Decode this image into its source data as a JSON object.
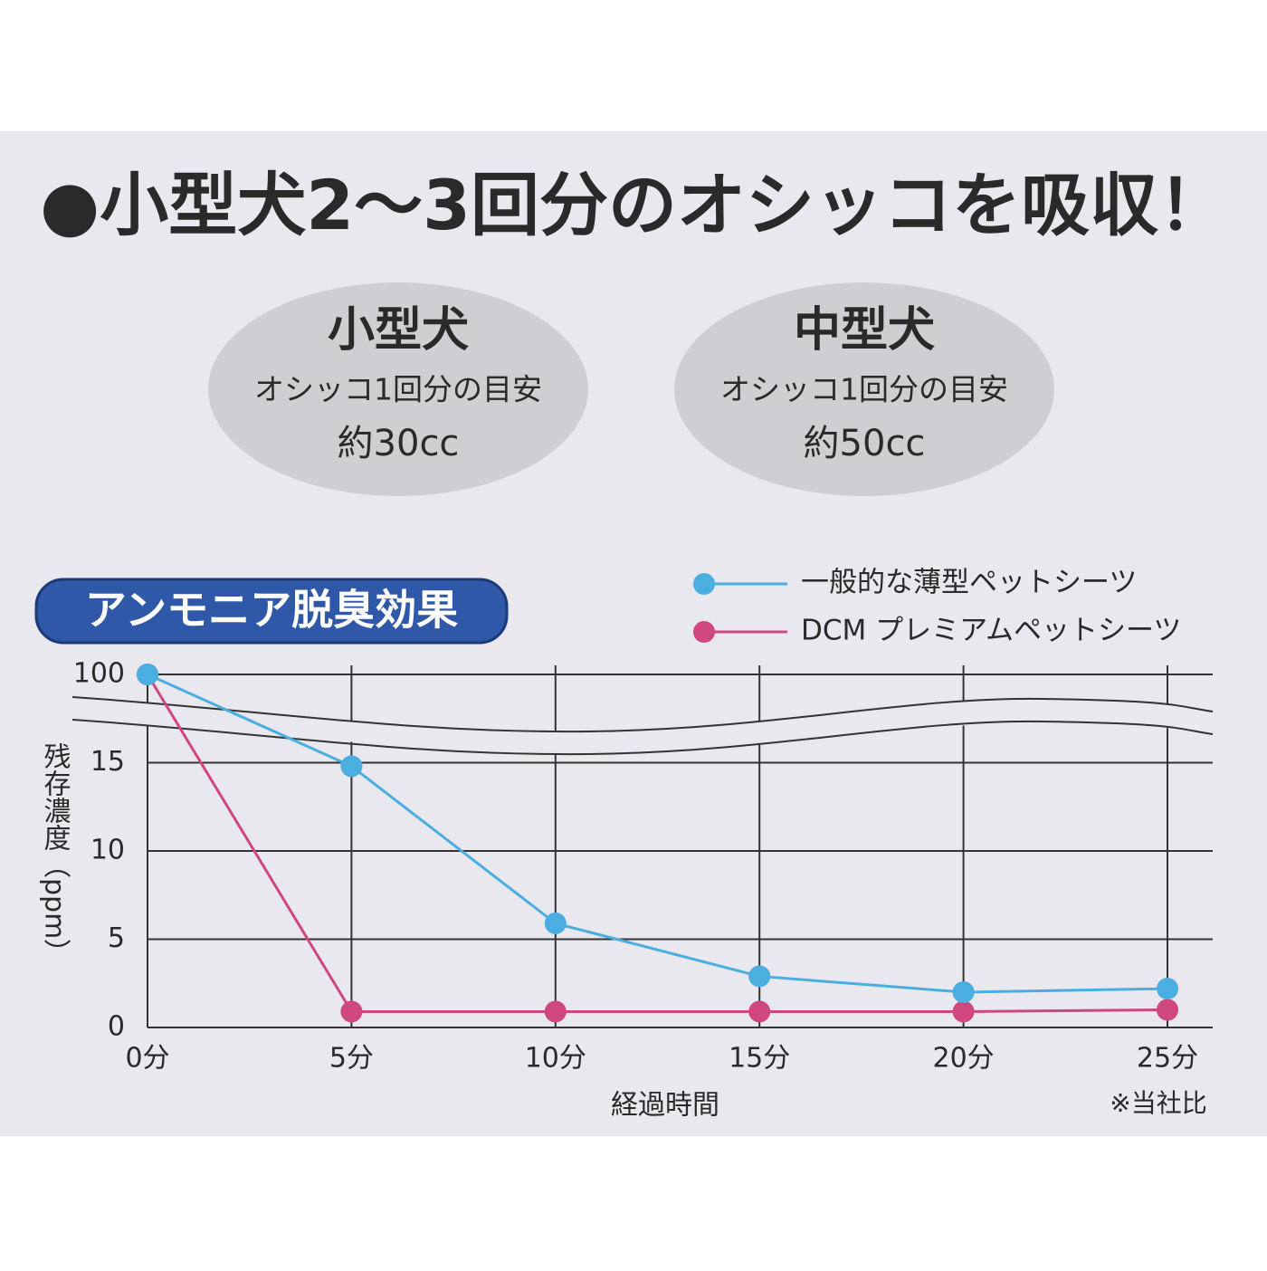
{
  "header": {
    "title": "●小型犬2〜3回分のオシッコを吸収！"
  },
  "cards": [
    {
      "title": "小型犬",
      "subtitle": "オシッコ1回分の目安",
      "amount": "約30cc"
    },
    {
      "title": "中型犬",
      "subtitle": "オシッコ1回分の目安",
      "amount": "約50cc"
    }
  ],
  "chart_data": {
    "type": "line",
    "title": "アンモニア脱臭効果",
    "x_label": "経過時間",
    "y_label": "残存濃度（ppm）",
    "note": "※当社比",
    "categories": [
      "0分",
      "5分",
      "10分",
      "15分",
      "20分",
      "25分"
    ],
    "series": [
      {
        "name": "一般的な薄型ペットシーツ",
        "color": "#4aaee0",
        "values": [
          100,
          14.8,
          5.9,
          2.9,
          2.0,
          2.2
        ]
      },
      {
        "name": "DCM プレミアムペットシーツ",
        "color": "#d0467f",
        "values": [
          100,
          0.9,
          0.9,
          0.9,
          0.9,
          1.0
        ]
      }
    ],
    "ylim": [
      0,
      100
    ],
    "yticks": [
      0,
      5,
      10,
      15,
      100
    ],
    "grid": true,
    "axis_break": true
  }
}
